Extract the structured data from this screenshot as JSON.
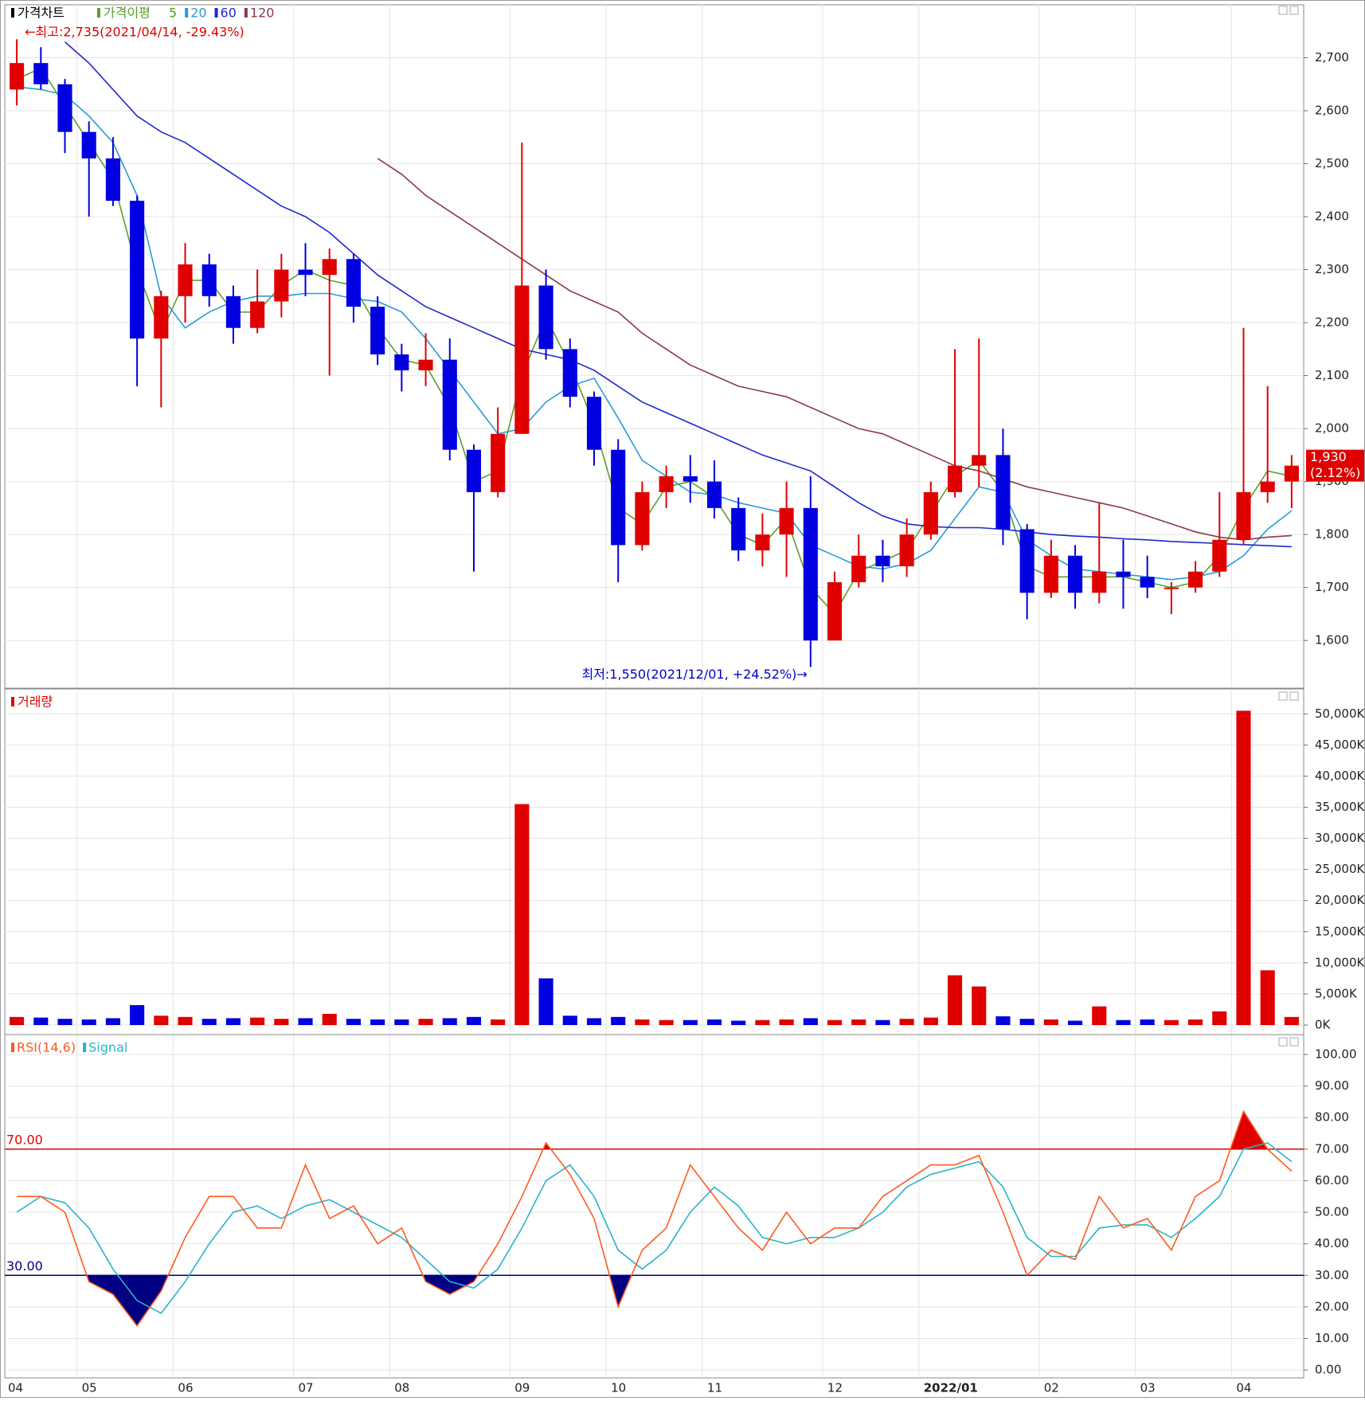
{
  "chart_data": [
    {
      "type": "candlestick",
      "title": "가격차트",
      "ma_title": "가격이평",
      "categories": [
        "04",
        null,
        null,
        "05",
        null,
        null,
        null,
        "06",
        null,
        null,
        null,
        null,
        "07",
        null,
        null,
        null,
        "08",
        null,
        null,
        null,
        null,
        "09",
        null,
        null,
        null,
        "10",
        null,
        null,
        null,
        "11",
        null,
        null,
        null,
        null,
        "12",
        null,
        null,
        null,
        "2022/01",
        null,
        null,
        null,
        null,
        "02",
        null,
        null,
        null,
        "03",
        null,
        null,
        null,
        "04",
        null,
        null
      ],
      "open": [
        2640,
        2690,
        2650,
        2560,
        2510,
        2430,
        2170,
        2250,
        2310,
        2250,
        2190,
        2240,
        2300,
        2290,
        2320,
        2230,
        2140,
        2110,
        2130,
        1960,
        1880,
        1990,
        2270,
        2150,
        2060,
        1960,
        1780,
        1880,
        1910,
        1900,
        1850,
        1770,
        1800,
        1850,
        1600,
        1710,
        1760,
        1740,
        1800,
        1880,
        1930,
        1950,
        1810,
        1690,
        1760,
        1690,
        1730,
        1720,
        1700,
        1700,
        1730,
        1790,
        1880,
        1900
      ],
      "high": [
        2735,
        2720,
        2660,
        2580,
        2550,
        2440,
        2260,
        2350,
        2330,
        2270,
        2300,
        2330,
        2350,
        2340,
        2330,
        2250,
        2160,
        2180,
        2170,
        1970,
        2040,
        2540,
        2300,
        2170,
        2070,
        1980,
        1900,
        1930,
        1950,
        1940,
        1870,
        1840,
        1900,
        1910,
        1730,
        1800,
        1790,
        1830,
        1900,
        2150,
        2170,
        2000,
        1820,
        1790,
        1780,
        1860,
        1790,
        1760,
        1710,
        1750,
        1880,
        2190,
        2080,
        1950
      ],
      "low": [
        2610,
        2640,
        2520,
        2400,
        2420,
        2080,
        2040,
        2200,
        2230,
        2160,
        2180,
        2210,
        2250,
        2100,
        2200,
        2120,
        2070,
        2080,
        1940,
        1730,
        1870,
        1990,
        2130,
        2040,
        1930,
        1710,
        1770,
        1850,
        1860,
        1830,
        1750,
        1740,
        1720,
        1550,
        1600,
        1700,
        1710,
        1720,
        1790,
        1870,
        1890,
        1780,
        1640,
        1680,
        1660,
        1670,
        1660,
        1680,
        1650,
        1690,
        1720,
        1780,
        1860,
        1850
      ],
      "close": [
        2690,
        2650,
        2560,
        2510,
        2430,
        2170,
        2250,
        2310,
        2250,
        2190,
        2240,
        2300,
        2290,
        2320,
        2230,
        2140,
        2110,
        2130,
        1960,
        1880,
        1990,
        2270,
        2150,
        2060,
        1960,
        1780,
        1880,
        1910,
        1900,
        1850,
        1770,
        1800,
        1850,
        1600,
        1710,
        1760,
        1740,
        1800,
        1880,
        1930,
        1950,
        1810,
        1690,
        1760,
        1690,
        1730,
        1720,
        1700,
        1700,
        1730,
        1790,
        1880,
        1900,
        1930
      ],
      "up_color": "#e00000",
      "down_color": "#0000e0",
      "series": [
        {
          "name": "5",
          "color": "#5aa02a",
          "values": [
            2660,
            2680,
            2610,
            2540,
            2470,
            2300,
            2180,
            2280,
            2280,
            2220,
            2220,
            2270,
            2300,
            2280,
            2270,
            2190,
            2130,
            2120,
            2040,
            1900,
            1920,
            2100,
            2210,
            2120,
            2010,
            1850,
            1820,
            1890,
            1900,
            1870,
            1800,
            1780,
            1830,
            1700,
            1650,
            1730,
            1750,
            1770,
            1840,
            1910,
            1940,
            1880,
            1740,
            1720,
            1720,
            1720,
            1720,
            1710,
            1700,
            1710,
            1760,
            1850,
            1920,
            1910
          ]
        },
        {
          "name": "20",
          "color": "#2a9ad8",
          "values": [
            2645,
            2640,
            2630,
            2590,
            2540,
            2440,
            2250,
            2190,
            2220,
            2240,
            2250,
            2250,
            2255,
            2255,
            2245,
            2240,
            2220,
            2170,
            2110,
            2050,
            1990,
            2000,
            2050,
            2080,
            2095,
            2020,
            1940,
            1910,
            1880,
            1875,
            1860,
            1850,
            1840,
            1780,
            1760,
            1740,
            1735,
            1745,
            1770,
            1830,
            1890,
            1880,
            1790,
            1760,
            1735,
            1730,
            1725,
            1720,
            1715,
            1720,
            1730,
            1760,
            1810,
            1845
          ]
        },
        {
          "name": "60",
          "color": "#1e28d0",
          "values": [
            null,
            null,
            2730,
            2690,
            2640,
            2590,
            2560,
            2540,
            2510,
            2480,
            2450,
            2420,
            2400,
            2370,
            2330,
            2290,
            2260,
            2230,
            2210,
            2190,
            2170,
            2150,
            2140,
            2130,
            2110,
            2080,
            2050,
            2030,
            2010,
            1990,
            1970,
            1950,
            1935,
            1920,
            1890,
            1860,
            1835,
            1820,
            1815,
            1813,
            1813,
            1810,
            1805,
            1800,
            1797,
            1795,
            1792,
            1790,
            1787,
            1785,
            1783,
            1781,
            1779,
            1777
          ]
        },
        {
          "name": "120",
          "color": "#8b3a4a",
          "values": [
            null,
            null,
            null,
            null,
            null,
            null,
            null,
            null,
            null,
            null,
            null,
            null,
            null,
            null,
            null,
            2510,
            2480,
            2440,
            2410,
            2380,
            2350,
            2320,
            2290,
            2260,
            2240,
            2220,
            2180,
            2150,
            2120,
            2100,
            2080,
            2070,
            2060,
            2040,
            2020,
            2000,
            1990,
            1970,
            1950,
            1930,
            1920,
            1905,
            1890,
            1880,
            1870,
            1860,
            1850,
            1835,
            1820,
            1805,
            1795,
            1790,
            1795,
            1798
          ]
        }
      ],
      "ylim": [
        1510,
        2800
      ],
      "yticks": [
        {
          "value": 1600,
          "label": "1,600"
        },
        {
          "value": 1700,
          "label": "1,700"
        },
        {
          "value": 1800,
          "label": "1,800"
        },
        {
          "value": 1900,
          "label": "1,900"
        },
        {
          "value": 2000,
          "label": "2,000"
        },
        {
          "value": 2100,
          "label": "2,100"
        },
        {
          "value": 2200,
          "label": "2,200"
        },
        {
          "value": 2300,
          "label": "2,300"
        },
        {
          "value": 2400,
          "label": "2,400"
        },
        {
          "value": 2500,
          "label": "2,500"
        },
        {
          "value": 2600,
          "label": "2,600"
        },
        {
          "value": 2700,
          "label": "2,700"
        }
      ],
      "grid": true,
      "annotations": [
        {
          "text": "←최고:2,735(2021/04/14, -29.43%)",
          "color": "#e00000"
        },
        {
          "text": "최저:1,550(2021/12/01, +24.52%)→",
          "color": "#0000c8"
        }
      ],
      "last_price": {
        "value": 1930,
        "label": "1,930"
      },
      "last_change": "(2.12%)"
    },
    {
      "type": "bar",
      "title": "거래량",
      "color": "#e00000",
      "values": [
        1300,
        1200,
        1000,
        900,
        1100,
        3200,
        1500,
        1300,
        1000,
        1100,
        1200,
        1000,
        1100,
        1800,
        1000,
        900,
        900,
        1000,
        1100,
        1300,
        900,
        35500,
        7500,
        1500,
        1100,
        1300,
        900,
        800,
        800,
        900,
        700,
        800,
        900,
        1100,
        800,
        900,
        800,
        1000,
        1200,
        8000,
        6200,
        1400,
        1000,
        900,
        700,
        3000,
        800,
        900,
        800,
        900,
        2200,
        50500,
        8800,
        1300
      ],
      "ylim": [
        0,
        54000
      ],
      "yticks": [
        {
          "value": 0,
          "label": "0K"
        },
        {
          "value": 5000,
          "label": "5,000K"
        },
        {
          "value": 10000,
          "label": "10,000K"
        },
        {
          "value": 15000,
          "label": "15,000K"
        },
        {
          "value": 20000,
          "label": "20,000K"
        },
        {
          "value": 25000,
          "label": "25,000K"
        },
        {
          "value": 30000,
          "label": "30,000K"
        },
        {
          "value": 35000,
          "label": "35,000K"
        },
        {
          "value": 40000,
          "label": "40,000K"
        },
        {
          "value": 45000,
          "label": "45,000K"
        },
        {
          "value": 50000,
          "label": "50,000K"
        }
      ],
      "grid": true
    },
    {
      "type": "line",
      "series": [
        {
          "name": "RSI(14,6)",
          "color": "#ff5a1e",
          "values": [
            55,
            55,
            50,
            28,
            24,
            14,
            25,
            42,
            55,
            55,
            45,
            45,
            65,
            48,
            52,
            40,
            45,
            28,
            24,
            28,
            40,
            55,
            72,
            62,
            48,
            20,
            38,
            45,
            65,
            55,
            45,
            38,
            50,
            40,
            45,
            45,
            55,
            60,
            65,
            65,
            68,
            50,
            30,
            38,
            35,
            55,
            45,
            48,
            38,
            55,
            60,
            82,
            70,
            63
          ]
        },
        {
          "name": "Signal",
          "color": "#28b4c8",
          "values": [
            50,
            55,
            53,
            45,
            32,
            22,
            18,
            28,
            40,
            50,
            52,
            48,
            52,
            54,
            50,
            46,
            42,
            35,
            28,
            26,
            32,
            45,
            60,
            65,
            55,
            38,
            32,
            38,
            50,
            58,
            52,
            42,
            40,
            42,
            42,
            45,
            50,
            58,
            62,
            64,
            66,
            58,
            42,
            36,
            36,
            45,
            46,
            46,
            42,
            48,
            55,
            70,
            72,
            66
          ]
        }
      ],
      "levels": [
        {
          "value": 70,
          "label": "70.00",
          "color": "#e00000"
        },
        {
          "value": 30,
          "label": "30.00",
          "color": "#000080"
        }
      ],
      "ylim": [
        -2.5,
        106.3
      ],
      "yticks": [
        {
          "value": 0,
          "label": "0.00"
        },
        {
          "value": 10,
          "label": "10.00"
        },
        {
          "value": 20,
          "label": "20.00"
        },
        {
          "value": 30,
          "label": "30.00"
        },
        {
          "value": 40,
          "label": "40.00"
        },
        {
          "value": 50,
          "label": "50.00"
        },
        {
          "value": 60,
          "label": "60.00"
        },
        {
          "value": 70,
          "label": "70.00"
        },
        {
          "value": 80,
          "label": "80.00"
        },
        {
          "value": 90,
          "label": "90.00"
        },
        {
          "value": 100,
          "label": "100.00"
        }
      ],
      "grid": true
    }
  ]
}
